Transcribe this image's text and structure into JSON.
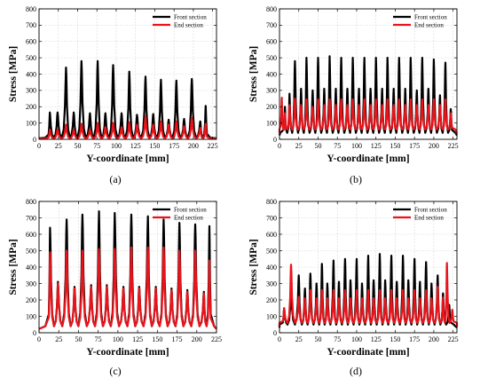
{
  "chart_data": [
    {
      "panel_label": "(a)",
      "type": "line",
      "xlabel": "Y-coordinate [mm]",
      "ylabel": "Stress [MPa]",
      "xlim": [
        0,
        230
      ],
      "ylim": [
        0,
        800
      ],
      "xticks": [
        "0",
        "25",
        "50",
        "75",
        "100",
        "125",
        "150",
        "175",
        "200",
        "225"
      ],
      "yticks": [
        "0",
        "100",
        "200",
        "300",
        "400",
        "500",
        "600",
        "700",
        "800"
      ],
      "grid": true,
      "legend": "top-right",
      "series": [
        {
          "name": "Front section",
          "color": "#000000",
          "peaks": [
            [
              14,
              165
            ],
            [
              24,
              165
            ],
            [
              35,
              440
            ],
            [
              45,
              165
            ],
            [
              55,
              480
            ],
            [
              66,
              160
            ],
            [
              76,
              480
            ],
            [
              86,
              160
            ],
            [
              96,
              455
            ],
            [
              107,
              160
            ],
            [
              117,
              415
            ],
            [
              127,
              150
            ],
            [
              138,
              385
            ],
            [
              148,
              155
            ],
            [
              158,
              365
            ],
            [
              168,
              120
            ],
            [
              178,
              360
            ],
            [
              188,
              125
            ],
            [
              198,
              370
            ],
            [
              209,
              110
            ],
            [
              216,
              205
            ]
          ],
          "baseline": 10
        },
        {
          "name": "End section",
          "color": "#e8141b",
          "peaks": [
            [
              14,
              60
            ],
            [
              24,
              60
            ],
            [
              35,
              90
            ],
            [
              45,
              60
            ],
            [
              55,
              95
            ],
            [
              66,
              60
            ],
            [
              76,
              100
            ],
            [
              86,
              75
            ],
            [
              96,
              100
            ],
            [
              107,
              75
            ],
            [
              117,
              105
            ],
            [
              127,
              90
            ],
            [
              138,
              140
            ],
            [
              148,
              90
            ],
            [
              158,
              110
            ],
            [
              168,
              90
            ],
            [
              178,
              110
            ],
            [
              188,
              80
            ],
            [
              198,
              130
            ],
            [
              209,
              70
            ],
            [
              216,
              95
            ]
          ],
          "baseline": 5
        }
      ]
    },
    {
      "panel_label": "(b)",
      "type": "line",
      "xlabel": "Y-coordinate [mm]",
      "ylabel": "Stress [MPa]",
      "xlim": [
        0,
        230
      ],
      "ylim": [
        0,
        800
      ],
      "xticks": [
        "0",
        "25",
        "50",
        "75",
        "100",
        "125",
        "150",
        "175",
        "200",
        "225"
      ],
      "yticks": [
        "0",
        "100",
        "200",
        "300",
        "400",
        "500",
        "600",
        "700",
        "800"
      ],
      "grid": true,
      "legend": "top-right",
      "series": [
        {
          "name": "Front section",
          "color": "#000000",
          "peaks": [
            [
              7,
              200
            ],
            [
              13,
              280
            ],
            [
              20,
              480
            ],
            [
              28,
              310
            ],
            [
              35,
              500
            ],
            [
              43,
              300
            ],
            [
              50,
              500
            ],
            [
              58,
              310
            ],
            [
              65,
              510
            ],
            [
              73,
              310
            ],
            [
              80,
              500
            ],
            [
              88,
              310
            ],
            [
              95,
              500
            ],
            [
              103,
              310
            ],
            [
              110,
              500
            ],
            [
              118,
              310
            ],
            [
              125,
              500
            ],
            [
              133,
              310
            ],
            [
              140,
              500
            ],
            [
              148,
              310
            ],
            [
              155,
              500
            ],
            [
              163,
              310
            ],
            [
              170,
              500
            ],
            [
              178,
              300
            ],
            [
              185,
              500
            ],
            [
              193,
              310
            ],
            [
              200,
              490
            ],
            [
              208,
              270
            ],
            [
              215,
              470
            ],
            [
              222,
              185
            ]
          ],
          "baseline": 40
        },
        {
          "name": "End section",
          "color": "#e8141b",
          "peaks": [
            [
              3,
              255
            ],
            [
              7,
              160
            ],
            [
              13,
              210
            ],
            [
              20,
              250
            ],
            [
              28,
              210
            ],
            [
              35,
              245
            ],
            [
              43,
              200
            ],
            [
              50,
              245
            ],
            [
              58,
              210
            ],
            [
              65,
              245
            ],
            [
              73,
              210
            ],
            [
              80,
              245
            ],
            [
              88,
              210
            ],
            [
              95,
              245
            ],
            [
              103,
              210
            ],
            [
              110,
              245
            ],
            [
              118,
              210
            ],
            [
              125,
              245
            ],
            [
              133,
              210
            ],
            [
              140,
              245
            ],
            [
              148,
              210
            ],
            [
              155,
              245
            ],
            [
              163,
              210
            ],
            [
              170,
              245
            ],
            [
              178,
              210
            ],
            [
              185,
              245
            ],
            [
              193,
              210
            ],
            [
              200,
              245
            ],
            [
              208,
              210
            ],
            [
              215,
              245
            ],
            [
              222,
              160
            ]
          ],
          "baseline": 60
        }
      ]
    },
    {
      "panel_label": "(c)",
      "type": "line",
      "xlabel": "Y-coordinate [mm]",
      "ylabel": "Stress [MPa]",
      "xlim": [
        0,
        225
      ],
      "ylim": [
        0,
        800
      ],
      "xticks": [
        "0",
        "25",
        "50",
        "75",
        "100",
        "125",
        "150",
        "175",
        "200",
        "225"
      ],
      "yticks": [
        "0",
        "100",
        "200",
        "300",
        "400",
        "500",
        "600",
        "700",
        "800"
      ],
      "grid": true,
      "legend": "top-right",
      "series": [
        {
          "name": "Front section",
          "color": "#000000",
          "peaks": [
            [
              14,
              640
            ],
            [
              24,
              310
            ],
            [
              35,
              690
            ],
            [
              45,
              280
            ],
            [
              55,
              720
            ],
            [
              66,
              290
            ],
            [
              76,
              740
            ],
            [
              86,
              290
            ],
            [
              96,
              730
            ],
            [
              107,
              280
            ],
            [
              117,
              720
            ],
            [
              127,
              280
            ],
            [
              138,
              710
            ],
            [
              148,
              280
            ],
            [
              158,
              690
            ],
            [
              168,
              270
            ],
            [
              178,
              670
            ],
            [
              188,
              260
            ],
            [
              198,
              660
            ],
            [
              209,
              250
            ],
            [
              216,
              650
            ]
          ],
          "baseline": 40
        },
        {
          "name": "End section",
          "color": "#e8141b",
          "peaks": [
            [
              14,
              490
            ],
            [
              24,
              300
            ],
            [
              35,
              500
            ],
            [
              45,
              270
            ],
            [
              55,
              500
            ],
            [
              66,
              280
            ],
            [
              76,
              510
            ],
            [
              86,
              280
            ],
            [
              96,
              510
            ],
            [
              107,
              270
            ],
            [
              117,
              520
            ],
            [
              127,
              270
            ],
            [
              138,
              520
            ],
            [
              148,
              270
            ],
            [
              158,
              520
            ],
            [
              168,
              260
            ],
            [
              178,
              500
            ],
            [
              188,
              250
            ],
            [
              198,
              500
            ],
            [
              209,
              240
            ],
            [
              216,
              440
            ]
          ],
          "baseline": 40
        }
      ]
    },
    {
      "panel_label": "(d)",
      "type": "line",
      "xlabel": "Y-coordinate [mm]",
      "ylabel": "Stress [MPa]",
      "xlim": [
        0,
        230
      ],
      "ylim": [
        0,
        800
      ],
      "xticks": [
        "0",
        "25",
        "50",
        "75",
        "100",
        "125",
        "150",
        "175",
        "200",
        "225"
      ],
      "yticks": [
        "0",
        "100",
        "200",
        "300",
        "400",
        "500",
        "600",
        "700",
        "800"
      ],
      "grid": true,
      "legend": "top-right",
      "series": [
        {
          "name": "Front section",
          "color": "#000000",
          "peaks": [
            [
              6,
              150
            ],
            [
              15,
              280
            ],
            [
              25,
              350
            ],
            [
              33,
              270
            ],
            [
              40,
              360
            ],
            [
              48,
              300
            ],
            [
              55,
              420
            ],
            [
              62,
              300
            ],
            [
              70,
              440
            ],
            [
              77,
              310
            ],
            [
              85,
              450
            ],
            [
              92,
              320
            ],
            [
              100,
              450
            ],
            [
              107,
              300
            ],
            [
              115,
              470
            ],
            [
              122,
              320
            ],
            [
              130,
              480
            ],
            [
              137,
              320
            ],
            [
              145,
              470
            ],
            [
              152,
              310
            ],
            [
              160,
              470
            ],
            [
              167,
              320
            ],
            [
              175,
              450
            ],
            [
              182,
              310
            ],
            [
              190,
              430
            ],
            [
              197,
              300
            ],
            [
              205,
              350
            ],
            [
              212,
              240
            ],
            [
              220,
              170
            ]
          ],
          "baseline": 50
        },
        {
          "name": "End section",
          "color": "#e8141b",
          "peaks": [
            [
              6,
              150
            ],
            [
              15,
              415
            ],
            [
              25,
              220
            ],
            [
              33,
              210
            ],
            [
              40,
              260
            ],
            [
              48,
              210
            ],
            [
              55,
              260
            ],
            [
              62,
              210
            ],
            [
              70,
              260
            ],
            [
              77,
              210
            ],
            [
              85,
              260
            ],
            [
              92,
              210
            ],
            [
              100,
              260
            ],
            [
              107,
              210
            ],
            [
              115,
              260
            ],
            [
              122,
              210
            ],
            [
              130,
              260
            ],
            [
              137,
              210
            ],
            [
              145,
              260
            ],
            [
              152,
              210
            ],
            [
              160,
              260
            ],
            [
              167,
              210
            ],
            [
              175,
              260
            ],
            [
              182,
              210
            ],
            [
              190,
              260
            ],
            [
              197,
              210
            ],
            [
              205,
              280
            ],
            [
              212,
              215
            ],
            [
              217,
              425
            ],
            [
              224,
              140
            ]
          ],
          "baseline": 60
        }
      ]
    }
  ]
}
